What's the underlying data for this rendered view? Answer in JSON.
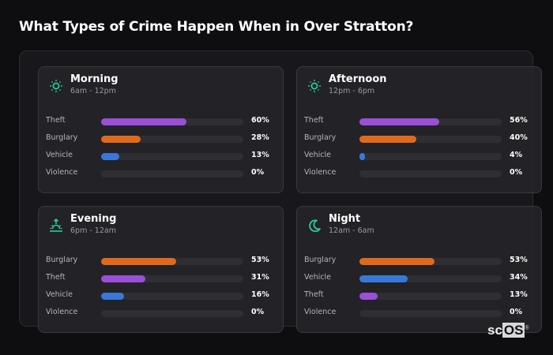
{
  "title": "What Types of Crime Happen When in Over Stratton?",
  "colors": {
    "theft": "#9a4fd6",
    "burglary": "#e06a1c",
    "vehicle": "#3a78d8",
    "violence": "#2e2e33",
    "icon": "#2ec99a"
  },
  "cards": [
    {
      "name": "Morning",
      "range": "6am - 12pm",
      "icon": "sun-icon",
      "rows": [
        {
          "label": "Theft",
          "value": 60,
          "pct": "60%",
          "type": "theft"
        },
        {
          "label": "Burglary",
          "value": 28,
          "pct": "28%",
          "type": "burglary"
        },
        {
          "label": "Vehicle",
          "value": 13,
          "pct": "13%",
          "type": "vehicle"
        },
        {
          "label": "Violence",
          "value": 0,
          "pct": "0%",
          "type": "violence"
        }
      ]
    },
    {
      "name": "Afternoon",
      "range": "12pm - 6pm",
      "icon": "sun-icon",
      "rows": [
        {
          "label": "Theft",
          "value": 56,
          "pct": "56%",
          "type": "theft"
        },
        {
          "label": "Burglary",
          "value": 40,
          "pct": "40%",
          "type": "burglary"
        },
        {
          "label": "Vehicle",
          "value": 4,
          "pct": "4%",
          "type": "vehicle"
        },
        {
          "label": "Violence",
          "value": 0,
          "pct": "0%",
          "type": "violence"
        }
      ]
    },
    {
      "name": "Evening",
      "range": "6pm - 12am",
      "icon": "sunset-icon",
      "rows": [
        {
          "label": "Burglary",
          "value": 53,
          "pct": "53%",
          "type": "burglary"
        },
        {
          "label": "Theft",
          "value": 31,
          "pct": "31%",
          "type": "theft"
        },
        {
          "label": "Vehicle",
          "value": 16,
          "pct": "16%",
          "type": "vehicle"
        },
        {
          "label": "Violence",
          "value": 0,
          "pct": "0%",
          "type": "violence"
        }
      ]
    },
    {
      "name": "Night",
      "range": "12am - 6am",
      "icon": "moon-icon",
      "rows": [
        {
          "label": "Burglary",
          "value": 53,
          "pct": "53%",
          "type": "burglary"
        },
        {
          "label": "Vehicle",
          "value": 34,
          "pct": "34%",
          "type": "vehicle"
        },
        {
          "label": "Theft",
          "value": 13,
          "pct": "13%",
          "type": "theft"
        },
        {
          "label": "Violence",
          "value": 0,
          "pct": "0%",
          "type": "violence"
        }
      ]
    }
  ],
  "logo": {
    "sc": "sc",
    "os": "OS",
    "mark": "®"
  }
}
